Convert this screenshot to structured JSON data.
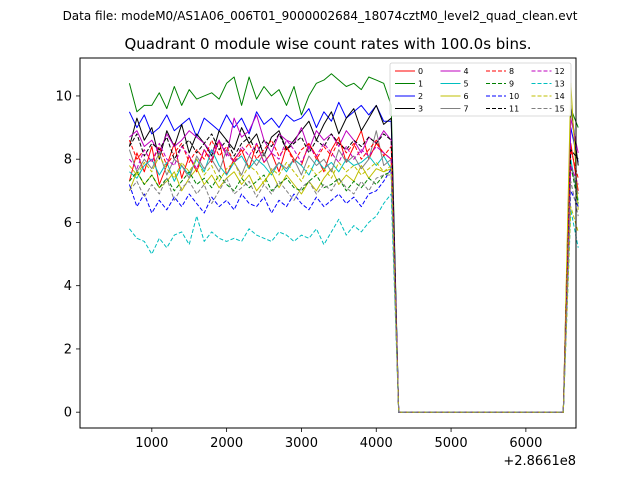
{
  "suptitle": "Data file: modeM0/AS1A06_006T01_9000002684_18074cztM0_level2_quad_clean.evt",
  "chart_data": {
    "type": "line",
    "title": "Quadrant 0 module wise count rates with 100.0s bins.",
    "xlabel": "",
    "ylabel": "",
    "xlim": [
      40,
      6670
    ],
    "ylim": [
      -0.5,
      11.2
    ],
    "x_offset_label": "+2.8661e8",
    "xticks": [
      1000,
      2000,
      3000,
      4000,
      5000,
      6000
    ],
    "xtick_labels": [
      "1000",
      "2000",
      "3000",
      "4000",
      "5000",
      "6000"
    ],
    "yticks": [
      0,
      2,
      4,
      6,
      8,
      10
    ],
    "ytick_labels": [
      "0",
      "2",
      "4",
      "6",
      "8",
      "10"
    ],
    "legend_position": "top-right",
    "legend_columns": 4,
    "active_x": [
      700,
      800,
      900,
      1000,
      1100,
      1200,
      1300,
      1400,
      1500,
      1600,
      1700,
      1800,
      1900,
      2000,
      2100,
      2200,
      2300,
      2400,
      2500,
      2600,
      2700,
      2800,
      2900,
      3000,
      3100,
      3200,
      3300,
      3400,
      3500,
      3600,
      3700,
      3800,
      3900,
      4000,
      4100,
      4200
    ],
    "tail_x": [
      4300,
      6400,
      6500,
      6600,
      6700
    ],
    "series": [
      {
        "name": "0",
        "color": "#ff0000",
        "dash": "solid",
        "values": [
          7.3,
          8.2,
          7.6,
          8.4,
          7.2,
          7.8,
          8.5,
          7.4,
          8.1,
          7.6,
          8.3,
          7.9,
          8.6,
          7.5,
          8.0,
          8.3,
          7.7,
          8.5,
          7.9,
          8.2,
          7.6,
          8.4,
          8.0,
          7.8,
          8.5,
          8.1,
          7.6,
          8.3,
          8.7,
          7.9,
          8.4,
          8.9,
          8.0,
          8.5,
          8.2,
          8.0
        ],
        "tail": [
          0.0,
          0.0,
          0.0,
          8.5,
          7.0
        ]
      },
      {
        "name": "1",
        "color": "#008000",
        "dash": "solid",
        "values": [
          10.4,
          9.5,
          9.7,
          9.7,
          10.1,
          9.6,
          10.3,
          9.7,
          10.2,
          9.9,
          10.0,
          10.1,
          9.9,
          10.4,
          10.6,
          9.7,
          10.6,
          9.9,
          10.3,
          10.0,
          10.2,
          9.7,
          10.3,
          9.4,
          10.0,
          10.4,
          10.5,
          10.7,
          10.5,
          10.3,
          10.4,
          10.2,
          10.6,
          10.5,
          10.4,
          9.7
        ],
        "tail": [
          0.0,
          0.0,
          0.0,
          9.6,
          9.0
        ]
      },
      {
        "name": "2",
        "color": "#0000ff",
        "dash": "solid",
        "values": [
          9.5,
          9.0,
          9.4,
          8.8,
          9.0,
          9.4,
          8.9,
          9.1,
          9.3,
          8.7,
          9.3,
          9.1,
          8.9,
          9.4,
          9.0,
          9.3,
          8.8,
          9.5,
          9.1,
          9.3,
          9.0,
          9.4,
          9.2,
          9.3,
          9.6,
          9.0,
          9.5,
          9.2,
          9.8,
          9.3,
          9.5,
          9.7,
          9.4,
          9.7,
          9.2,
          9.2
        ],
        "tail": [
          0.0,
          0.0,
          0.0,
          9.0,
          7.9
        ]
      },
      {
        "name": "3",
        "color": "#000000",
        "dash": "solid",
        "values": [
          8.4,
          9.3,
          8.6,
          9.0,
          8.0,
          8.9,
          8.4,
          9.1,
          8.2,
          8.8,
          8.5,
          8.1,
          8.9,
          8.6,
          8.3,
          9.0,
          8.5,
          8.8,
          8.1,
          8.7,
          8.9,
          8.3,
          8.6,
          8.9,
          9.2,
          8.6,
          9.1,
          9.5,
          8.8,
          9.3,
          9.6,
          8.9,
          9.3,
          9.7,
          9.1,
          9.3
        ],
        "tail": [
          0.0,
          0.0,
          0.0,
          9.7,
          7.8
        ]
      },
      {
        "name": "4",
        "color": "#bf00bf",
        "dash": "solid",
        "values": [
          8.7,
          8.9,
          8.4,
          8.6,
          8.2,
          8.8,
          8.4,
          8.6,
          8.9,
          8.7,
          8.5,
          8.2,
          8.6,
          8.1,
          9.3,
          8.7,
          8.9,
          9.4,
          8.6,
          8.2,
          8.8,
          8.6,
          8.5,
          9.0,
          8.3,
          8.9,
          8.6,
          8.8,
          8.4,
          8.9,
          8.6,
          8.2,
          8.7,
          8.5,
          8.9,
          8.6
        ],
        "tail": [
          0.0,
          0.0,
          0.0,
          9.3,
          8.2
        ]
      },
      {
        "name": "5",
        "color": "#00bfbf",
        "dash": "solid",
        "values": [
          7.6,
          7.4,
          7.8,
          8.0,
          7.5,
          7.9,
          7.3,
          7.8,
          7.5,
          8.0,
          7.6,
          8.3,
          7.8,
          7.5,
          7.9,
          8.1,
          7.7,
          8.0,
          7.8,
          7.5,
          7.9,
          7.6,
          8.0,
          7.8,
          7.5,
          8.0,
          7.7,
          7.9,
          7.6,
          8.0,
          7.8,
          7.9,
          8.1,
          7.8,
          8.1,
          7.7
        ],
        "tail": [
          0.0,
          0.0,
          0.0,
          8.0,
          6.7
        ]
      },
      {
        "name": "6",
        "color": "#bfbf00",
        "dash": "solid",
        "values": [
          7.0,
          7.6,
          7.2,
          7.5,
          7.1,
          7.3,
          7.6,
          7.0,
          7.4,
          7.7,
          7.2,
          7.5,
          7.1,
          7.4,
          7.6,
          7.2,
          7.5,
          7.0,
          7.3,
          7.6,
          7.1,
          7.5,
          7.2,
          6.9,
          7.3,
          7.0,
          7.4,
          7.7,
          7.2,
          7.5,
          7.3,
          7.8,
          7.4,
          7.7,
          7.6,
          7.7
        ],
        "tail": [
          0.0,
          0.0,
          0.0,
          10.4,
          6.4
        ]
      },
      {
        "name": "7",
        "color": "#808080",
        "dash": "solid",
        "values": [
          8.3,
          7.6,
          8.0,
          7.7,
          8.2,
          7.5,
          8.0,
          7.8,
          7.4,
          8.1,
          7.7,
          8.0,
          7.6,
          8.3,
          7.9,
          7.5,
          8.1,
          7.8,
          8.2,
          7.6,
          7.9,
          7.7,
          8.0,
          7.5,
          8.1,
          7.8,
          8.0,
          7.6,
          8.3,
          7.9,
          8.1,
          7.7,
          8.0,
          8.9,
          7.8,
          8.0
        ],
        "tail": [
          0.0,
          0.0,
          0.0,
          7.8,
          6.9
        ]
      },
      {
        "name": "8",
        "color": "#ff0000",
        "dash": "dashed",
        "values": [
          8.6,
          8.0,
          8.3,
          7.9,
          8.4,
          7.8,
          8.2,
          8.5,
          7.9,
          8.3,
          8.0,
          8.6,
          8.1,
          8.4,
          7.9,
          8.2,
          8.5,
          8.0,
          8.3,
          8.6,
          8.1,
          8.4,
          7.9,
          8.3,
          8.5,
          8.0,
          8.4,
          8.1,
          8.6,
          8.2,
          8.5,
          8.0,
          8.3,
          8.6,
          8.1,
          8.4
        ],
        "tail": [
          0.0,
          0.0,
          0.0,
          8.3,
          7.4
        ]
      },
      {
        "name": "9",
        "color": "#008000",
        "dash": "dashed",
        "values": [
          7.3,
          7.6,
          7.2,
          7.5,
          7.1,
          7.4,
          7.0,
          7.3,
          7.6,
          7.2,
          7.4,
          7.1,
          7.5,
          7.2,
          7.0,
          7.4,
          7.1,
          7.3,
          7.5,
          7.0,
          7.2,
          7.4,
          7.1,
          7.0,
          7.3,
          7.5,
          7.1,
          7.2,
          7.4,
          7.0,
          7.3,
          7.1,
          7.4,
          7.2,
          7.5,
          7.6
        ],
        "tail": [
          0.0,
          0.0,
          0.0,
          7.8,
          6.6
        ]
      },
      {
        "name": "10",
        "color": "#0000ff",
        "dash": "dashed",
        "values": [
          7.2,
          6.5,
          6.9,
          6.3,
          6.7,
          6.4,
          6.8,
          6.5,
          6.9,
          6.6,
          6.3,
          6.8,
          6.5,
          6.7,
          6.4,
          6.9,
          6.6,
          6.5,
          6.8,
          6.3,
          6.7,
          6.5,
          6.9,
          6.6,
          6.4,
          6.8,
          6.5,
          6.7,
          6.9,
          6.6,
          6.8,
          6.5,
          6.9,
          7.0,
          7.3,
          7.7
        ],
        "tail": [
          0.0,
          0.0,
          0.0,
          7.0,
          6.5
        ]
      },
      {
        "name": "11",
        "color": "#000000",
        "dash": "dashed",
        "values": [
          8.4,
          8.8,
          8.1,
          8.5,
          8.3,
          8.7,
          8.0,
          8.4,
          8.6,
          8.2,
          8.5,
          8.8,
          8.3,
          8.6,
          8.1,
          8.5,
          8.7,
          8.2,
          8.6,
          8.4,
          8.8,
          8.3,
          8.5,
          8.7,
          8.2,
          8.6,
          8.4,
          8.8,
          8.5,
          8.3,
          8.6,
          8.4,
          8.7,
          8.5,
          8.8,
          8.6
        ],
        "tail": [
          0.0,
          0.0,
          0.0,
          8.3,
          8.0
        ]
      },
      {
        "name": "12",
        "color": "#bf00bf",
        "dash": "dashed",
        "values": [
          8.0,
          7.7,
          8.3,
          7.9,
          8.5,
          8.0,
          7.8,
          8.4,
          8.1,
          7.7,
          8.3,
          8.0,
          8.6,
          8.2,
          7.9,
          8.4,
          8.1,
          8.5,
          7.9,
          8.2,
          8.0,
          8.6,
          8.3,
          7.9,
          8.4,
          8.1,
          8.5,
          8.2,
          7.9,
          8.4,
          8.0,
          8.3,
          8.1,
          8.4,
          8.2,
          8.0
        ],
        "tail": [
          0.0,
          0.0,
          0.0,
          7.8,
          7.2
        ]
      },
      {
        "name": "13",
        "color": "#00bfbf",
        "dash": "dashed",
        "values": [
          5.8,
          5.5,
          5.4,
          5.0,
          5.5,
          5.2,
          5.6,
          5.7,
          5.3,
          6.2,
          5.4,
          5.7,
          5.5,
          5.4,
          5.5,
          5.4,
          5.8,
          5.6,
          5.5,
          5.4,
          5.7,
          5.6,
          5.4,
          5.6,
          5.5,
          5.8,
          5.3,
          5.7,
          6.1,
          5.6,
          5.9,
          5.7,
          6.0,
          6.2,
          6.6,
          6.9
        ],
        "tail": [
          0.0,
          0.0,
          0.0,
          6.4,
          5.2
        ]
      },
      {
        "name": "14",
        "color": "#bfbf00",
        "dash": "dashed",
        "values": [
          7.8,
          7.5,
          7.9,
          7.6,
          8.1,
          7.7,
          7.4,
          7.9,
          7.6,
          8.0,
          7.5,
          7.8,
          7.3,
          7.7,
          7.9,
          7.4,
          7.8,
          7.6,
          7.2,
          7.7,
          7.5,
          7.9,
          7.6,
          7.3,
          7.8,
          7.5,
          7.7,
          7.4,
          7.9,
          7.6,
          7.8,
          7.5,
          7.7,
          7.9,
          7.6,
          7.8
        ],
        "tail": [
          0.0,
          0.0,
          0.0,
          6.5,
          5.7
        ]
      },
      {
        "name": "15",
        "color": "#808080",
        "dash": "dashed",
        "values": [
          7.0,
          7.3,
          6.8,
          7.2,
          6.9,
          7.4,
          6.7,
          7.1,
          7.3,
          6.9,
          7.2,
          6.6,
          7.0,
          7.4,
          6.9,
          7.1,
          7.3,
          6.8,
          7.2,
          6.9,
          7.3,
          7.0,
          6.7,
          7.1,
          7.3,
          6.9,
          7.2,
          7.0,
          7.4,
          7.1,
          6.9,
          7.3,
          7.0,
          7.4,
          7.5,
          7.5
        ],
        "tail": [
          0.0,
          0.0,
          0.0,
          7.3,
          6.2
        ]
      }
    ]
  }
}
